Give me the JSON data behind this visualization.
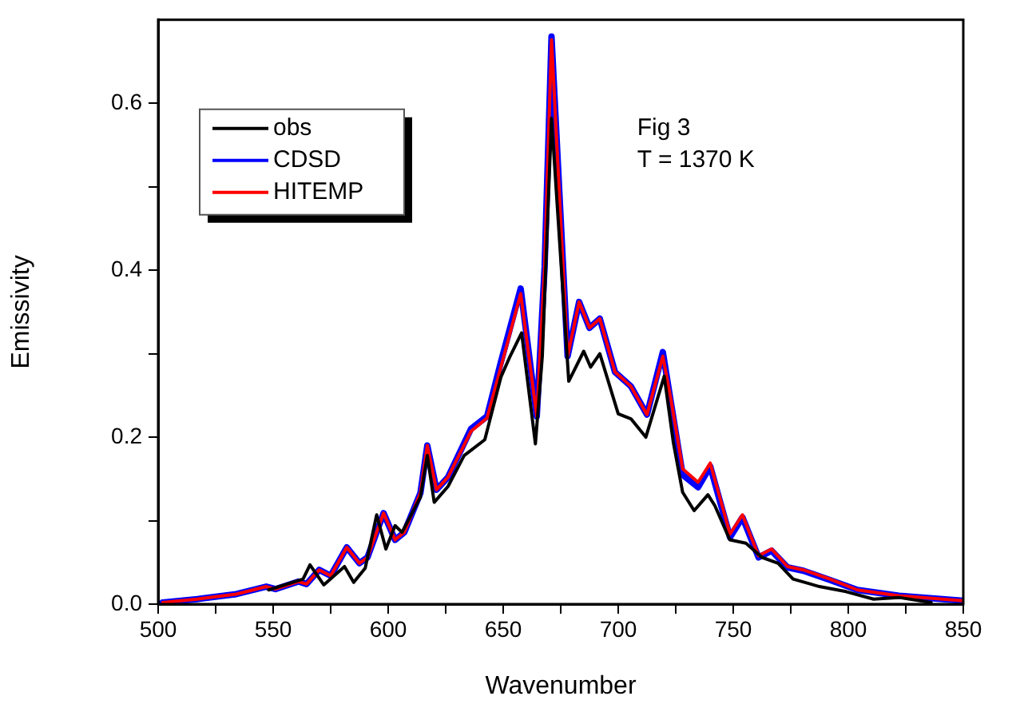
{
  "chart_data": {
    "type": "line",
    "xlabel": "Wavenumber",
    "ylabel": "Emissivity",
    "annotations": [
      "Fig 3",
      "T = 1370 K"
    ],
    "xlim": [
      500,
      850
    ],
    "xticks": [
      500,
      {
        "value": 525,
        "label": null
      },
      550,
      {
        "value": 575,
        "label": null
      },
      600,
      {
        "value": 625,
        "label": null
      },
      650,
      {
        "value": 675,
        "label": null
      },
      700,
      {
        "value": 725,
        "label": null
      },
      750,
      {
        "value": 775,
        "label": null
      },
      800,
      {
        "value": 825,
        "label": null
      },
      850
    ],
    "ylim": [
      0,
      0.7
    ],
    "yticks": [
      {
        "value": 0,
        "label": "0.0"
      },
      {
        "value": 0.1,
        "label": null
      },
      0.2,
      {
        "value": 0.3,
        "label": null
      },
      0.4,
      {
        "value": 0.5,
        "label": null
      },
      0.6
    ],
    "grid": false,
    "legend": "top left",
    "marker": "none",
    "line_style": "solid",
    "series": [
      {
        "name": "obs",
        "color": "#000000",
        "x": [
          548,
          563,
          566,
          572,
          581,
          585,
          590,
          595,
          599,
          603,
          606,
          614,
          617,
          620,
          626,
          633,
          642,
          649,
          653,
          658,
          664,
          667,
          671,
          678.5,
          685,
          688,
          692,
          700,
          705.5,
          712,
          720,
          724,
          728,
          733,
          739,
          742,
          748.5,
          755.5,
          762.5,
          769.5,
          776,
          787.5,
          799,
          811,
          822,
          836
        ],
        "values": [
          0.017,
          0.03,
          0.047,
          0.023,
          0.045,
          0.026,
          0.043,
          0.107,
          0.066,
          0.094,
          0.086,
          0.128,
          0.178,
          0.122,
          0.141,
          0.178,
          0.197,
          0.272,
          0.297,
          0.325,
          0.192,
          0.297,
          0.582,
          0.267,
          0.303,
          0.284,
          0.3,
          0.228,
          0.222,
          0.2,
          0.273,
          0.193,
          0.134,
          0.112,
          0.131,
          0.118,
          0.077,
          0.073,
          0.056,
          0.049,
          0.03,
          0.021,
          0.015,
          0.006,
          0.008,
          0.002
        ]
      },
      {
        "name": "CDSD",
        "color": "#0000ff",
        "x": [
          502,
          517,
          534,
          547,
          551,
          561,
          564.5,
          570,
          575,
          582,
          587.5,
          591,
          598,
          603,
          607,
          614,
          617,
          621,
          626,
          636,
          643,
          649,
          657.6,
          664.6,
          668,
          671,
          678,
          683,
          687.5,
          692,
          698.6,
          705.5,
          712.5,
          719.4,
          723,
          728,
          734.7,
          740,
          748.6,
          754,
          761,
          766.7,
          773.6,
          780.5,
          792,
          804,
          822,
          850
        ],
        "values": [
          0.002,
          0.006,
          0.012,
          0.021,
          0.018,
          0.027,
          0.024,
          0.041,
          0.034,
          0.068,
          0.049,
          0.056,
          0.109,
          0.077,
          0.086,
          0.133,
          0.19,
          0.137,
          0.152,
          0.21,
          0.225,
          0.29,
          0.378,
          0.225,
          0.404,
          0.68,
          0.297,
          0.362,
          0.331,
          0.342,
          0.278,
          0.261,
          0.227,
          0.302,
          0.24,
          0.155,
          0.14,
          0.165,
          0.08,
          0.104,
          0.056,
          0.064,
          0.044,
          0.04,
          0.029,
          0.017,
          0.01,
          0.004
        ]
      },
      {
        "name": "HITEMP",
        "color": "#ff0000",
        "x": [
          502,
          517,
          534,
          547,
          551,
          561,
          564.5,
          570,
          575,
          582,
          587.5,
          591,
          598,
          603,
          607,
          614,
          617,
          621,
          626,
          636,
          643,
          649,
          657.6,
          664.6,
          668,
          671,
          678,
          683,
          687.5,
          692,
          698.6,
          705.5,
          712.5,
          719.4,
          723,
          728,
          734.7,
          740,
          748.6,
          754,
          761,
          766.7,
          773.6,
          780.5,
          792,
          804,
          822,
          850
        ],
        "values": [
          0.002,
          0.006,
          0.012,
          0.021,
          0.018,
          0.027,
          0.024,
          0.041,
          0.034,
          0.068,
          0.049,
          0.056,
          0.109,
          0.077,
          0.086,
          0.133,
          0.19,
          0.137,
          0.152,
          0.207,
          0.223,
          0.284,
          0.372,
          0.225,
          0.404,
          0.676,
          0.297,
          0.362,
          0.331,
          0.342,
          0.278,
          0.261,
          0.227,
          0.297,
          0.244,
          0.162,
          0.146,
          0.169,
          0.084,
          0.107,
          0.058,
          0.066,
          0.045,
          0.041,
          0.03,
          0.017,
          0.01,
          0.004
        ]
      }
    ]
  }
}
